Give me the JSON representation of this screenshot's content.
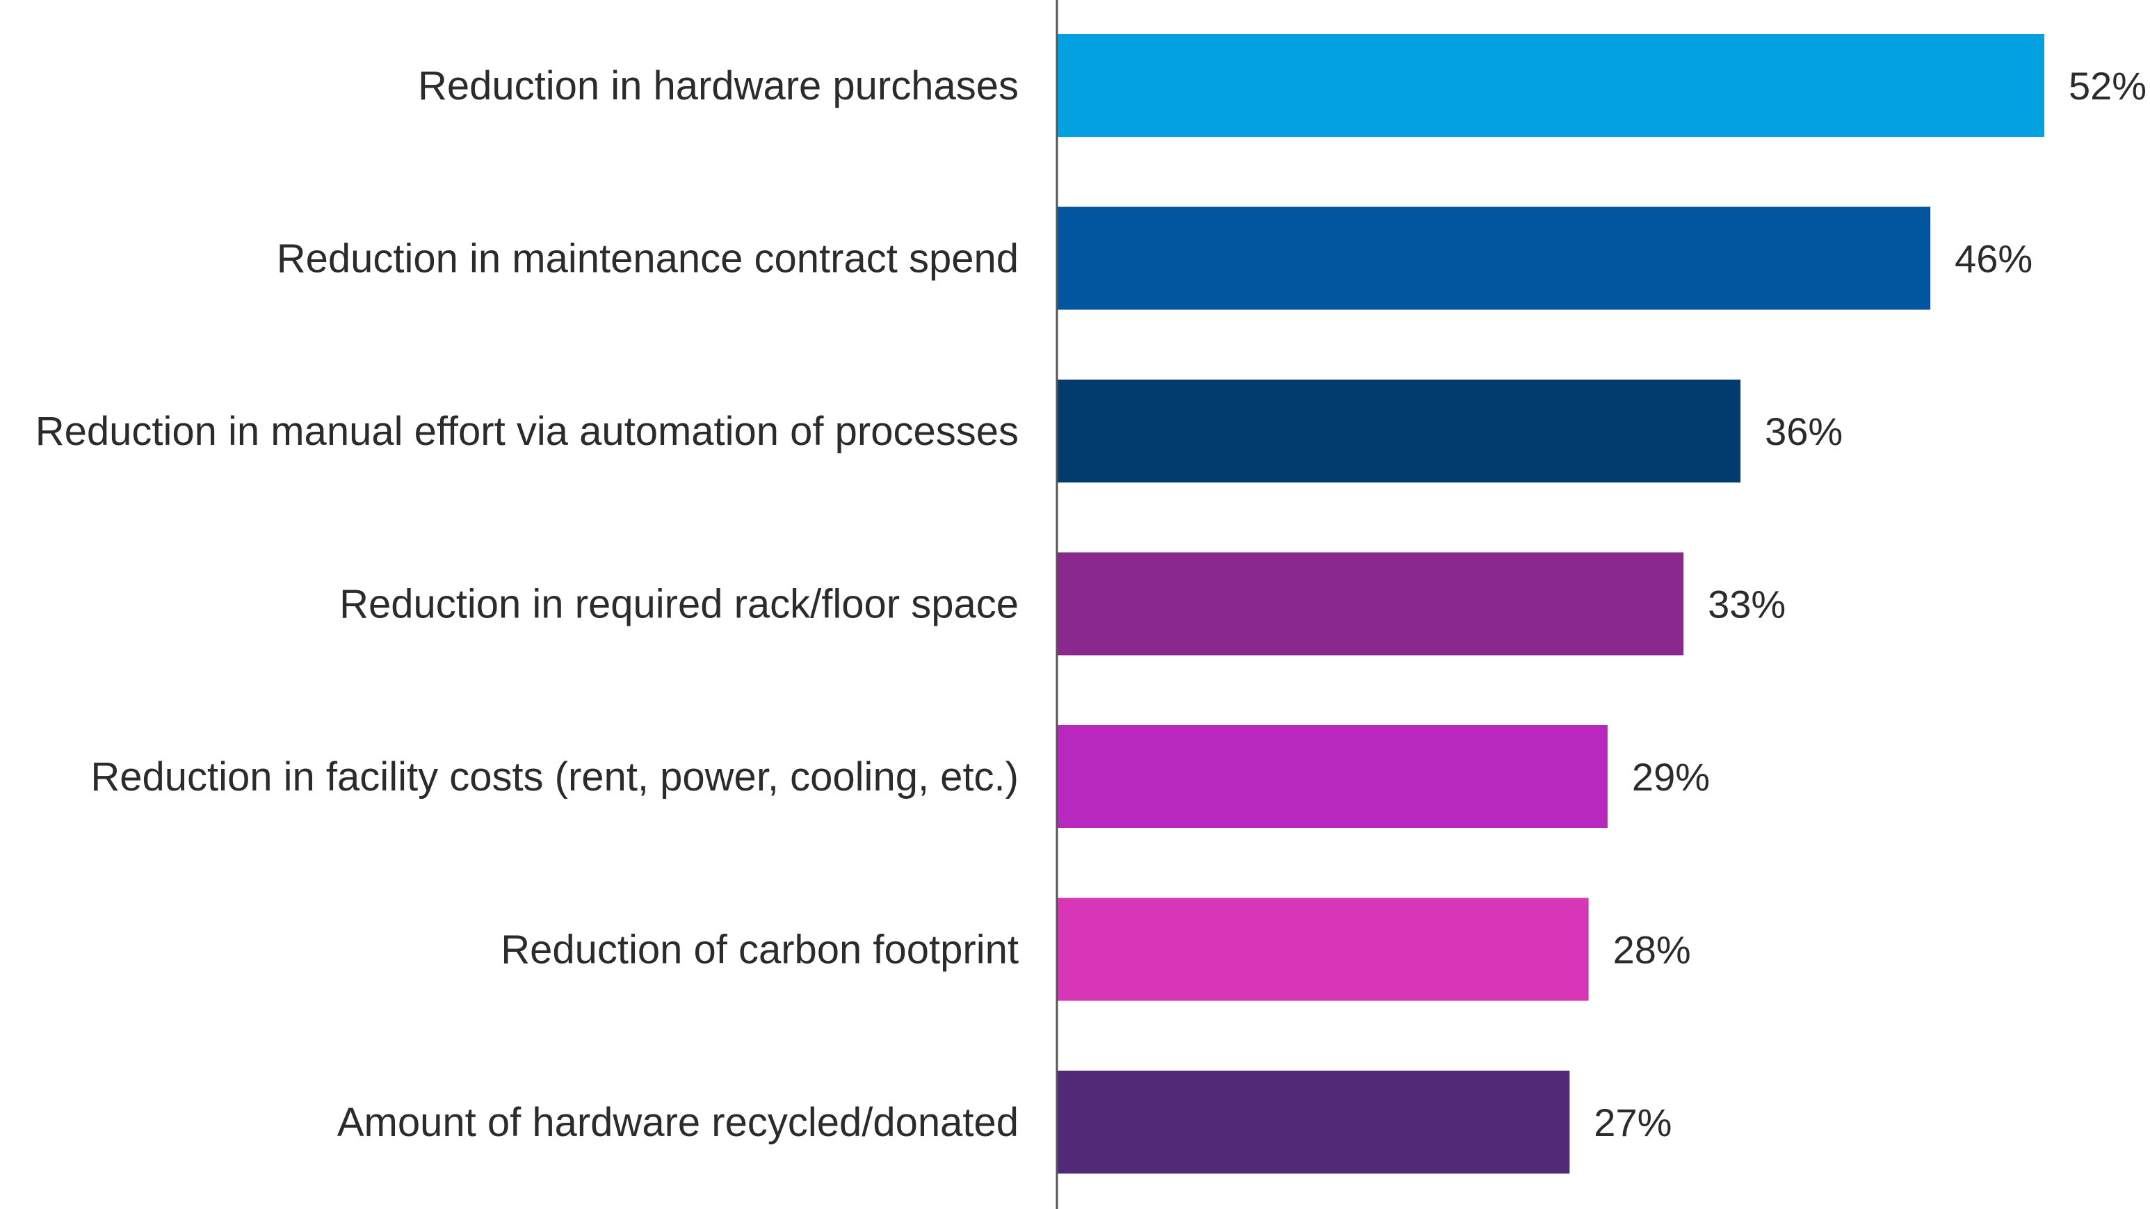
{
  "chart_data": {
    "type": "bar",
    "orientation": "horizontal",
    "categories": [
      "Reduction in hardware purchases",
      "Reduction in maintenance contract spend",
      "Reduction in manual effort via automation of processes",
      "Reduction in required rack/floor space",
      "Reduction in facility costs (rent, power, cooling, etc.)",
      "Reduction of carbon footprint",
      "Amount of hardware recycled/donated"
    ],
    "values": [
      52,
      46,
      36,
      33,
      29,
      28,
      27
    ],
    "value_labels": [
      "52%",
      "46%",
      "36%",
      "33%",
      "29%",
      "28%",
      "27%"
    ],
    "bar_colors": [
      "#04A1E0",
      "#02569F",
      "#023B6D",
      "#8B288E",
      "#B828BE",
      "#D736B6",
      "#502A76"
    ],
    "title": "",
    "xlabel": "",
    "ylabel": "",
    "xlim": [
      0,
      52
    ],
    "grid": false,
    "legend": "none",
    "axis_color": "#555555"
  }
}
